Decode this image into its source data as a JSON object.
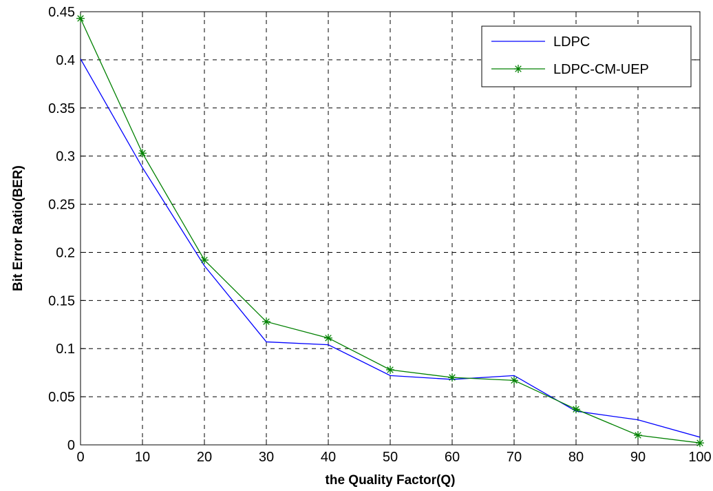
{
  "chart_data": {
    "type": "line",
    "title": "",
    "xlabel": "the Quality Factor(Q)",
    "ylabel": "Bit Error Ratio(BER)",
    "x": [
      0,
      10,
      20,
      30,
      40,
      50,
      60,
      70,
      80,
      90,
      100
    ],
    "xlim": [
      0,
      100
    ],
    "ylim": [
      0,
      0.45
    ],
    "xticks": [
      0,
      10,
      20,
      30,
      40,
      50,
      60,
      70,
      80,
      90,
      100
    ],
    "yticks": [
      0,
      0.05,
      0.1,
      0.15,
      0.2,
      0.25,
      0.3,
      0.35,
      0.4,
      0.45
    ],
    "xtick_labels": [
      "0",
      "10",
      "20",
      "30",
      "40",
      "50",
      "60",
      "70",
      "80",
      "90",
      "100"
    ],
    "ytick_labels": [
      "0",
      "0.05",
      "0.1",
      "0.15",
      "0.2",
      "0.25",
      "0.3",
      "0.35",
      "0.4",
      "0.45"
    ],
    "grid": true,
    "grid_style": "dashed",
    "legend_position": "top-right",
    "series": [
      {
        "name": "LDPC",
        "color": "#0000ff",
        "marker": "none",
        "values": [
          0.401,
          0.288,
          0.186,
          0.107,
          0.104,
          0.072,
          0.068,
          0.072,
          0.035,
          0.026,
          0.008
        ]
      },
      {
        "name": "LDPC-CM-UEP",
        "color": "#008000",
        "marker": "asterisk",
        "values": [
          0.443,
          0.303,
          0.192,
          0.128,
          0.111,
          0.078,
          0.07,
          0.067,
          0.037,
          0.01,
          0.002
        ]
      }
    ]
  }
}
